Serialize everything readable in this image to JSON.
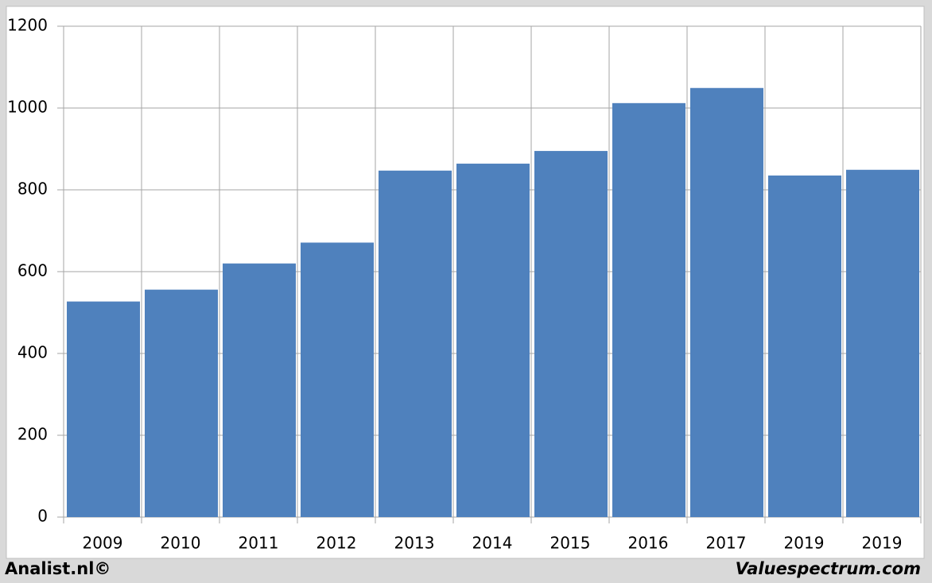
{
  "chart_data": {
    "type": "bar",
    "categories": [
      "2009",
      "2010",
      "2011",
      "2012",
      "2013",
      "2014",
      "2015",
      "2016",
      "2017",
      "2019",
      "2019"
    ],
    "values": [
      527,
      556,
      620,
      671,
      847,
      864,
      895,
      1012,
      1049,
      835,
      849
    ],
    "color": "#4f81bd",
    "ylim": [
      0,
      1200
    ],
    "yticks": [
      0,
      200,
      400,
      600,
      800,
      1000,
      1200
    ],
    "grid": true
  },
  "footer": {
    "left": "Analist.nl©",
    "right": "Valuespectrum.com"
  }
}
